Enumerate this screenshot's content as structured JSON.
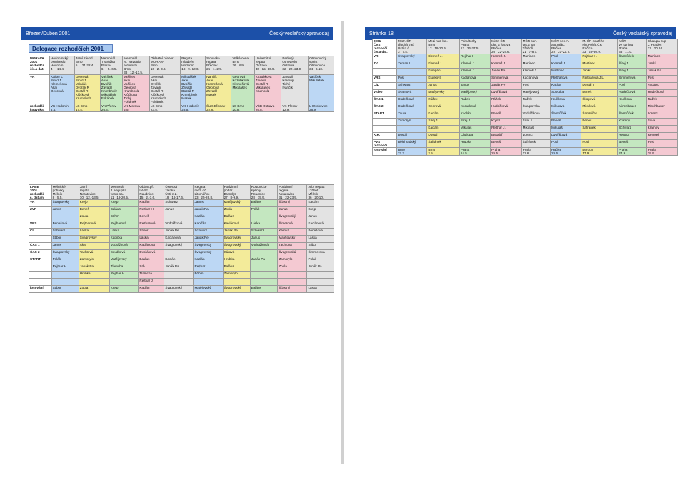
{
  "left_page": {
    "header_left": "Březen/Duben 2001",
    "header_right": "Český veslařský zpravodaj",
    "delegation_title": "Delegace rozhodčích 2001",
    "table1": {
      "rows": [
        {
          "label": "MORAVA\n2001\nrozhodčí\nčís.a dat.",
          "cells": [
            "Hodonínský\nosmiveslu\nHodonín\n4     14.4.",
            "Jarní závod\nBrno\n5     21-22.4.",
            "Memoriál\nTvarůžka\nPřerov\n6     5.-6.5.",
            "Memoriál\nM. Navrátila\na dorostu\nBrno\n38   12.-13.5.",
            "Oblastní přebor\nMORAVA\nBrno\n16   2.-3.6.",
            "Regata\nmládeže\nHodonín\n18   9.-10.6.",
            "Slovácká\nregata\nBřeclav\n25   1.-2.9.",
            "Velká cena\nBrno\n26   8.9.",
            "Univerzitní\nregata\nOstrava\n30   15.-16.9.",
            "Perlový\nosmiveslu\nOstrava\n32   22.-23.9.",
            "Otrokovický\nsprint\nOtrokovice\n34   6.10."
          ]
        },
        {
          "label": "VR",
          "cells": [
            "Kaiser L\nŠmíd J\nKlemešová\nAkai\nGeorová",
            "Georová\nŠmíd J\nMikuláš\nDvořák R\nDostál R\nKlůčková\nKrumbholz",
            "Vašíček\nAkai\nDvořák\nZavadil\nKrumbholz\nMikulášek\nFoltánek",
            "Vašíček\nAkai\nVašíček\nGeorová\nKrumbholz\nKlůčková\nTichý\nFoltánek",
            "Georová\nAkai\nDvořák\nZavadil\nDostál R\nKlůčková\nKrumbholz\nFoltánek",
            "Mikulášek\nAkai\nDvořák\nZavadil\nDostál R\nKrumbholz\nMasek",
            "Ivančík\nAkai\nKlemešová\nGeorová\nZavadil\nMasek",
            "Georová\nKozubková\nKlemešová\nMikulášek",
            "Kozubková\nZavadil\nDostál R\nMikulášek\nKrumholz",
            "Zavadil\nKramný\nTichý\nIvančík",
            "Vašíček\nMikulášek"
          ]
        },
        {
          "label": "rozhodčí\nkouvukat",
          "cells": [
            "VK Hodonín\n4.4.",
            "LS Brno\n17.4.",
            "VK Přerov\n26.4.",
            "VK Morava\n2.5.",
            "LS Brno\n23.5.",
            "VK Hodonín\n28.5.",
            "ŠUK Břeclav\n22.8.",
            "LS Brno\n20.8.",
            "VŠB Ostrava\n29.8.",
            "VK Přerov\n12.9.",
            "L Otrokovice\n26.9."
          ]
        }
      ]
    },
    "table2": {
      "head": {
        "label": "LABE\n2001\nrozhodčí\nč. datum",
        "cells": [
          "Mělnické\npohárky\nMělník\n8   5.5.",
          "Jarní\nregata\nNeratovice\n10   12.-13.5.",
          "Memoriál\nJ. Vejlupka\nveslo s L.\n11   19-20.5.",
          "Oblast.př.\nLABE\nRaudnice\n15   2.-3.6.",
          "Ústecká\nzátoka\nÚstí n.L.\n19   16-17.6.",
          "Regata\nmezi.oč.\nLitoměřice\n23   25-26.8.",
          "Podzimní\npohár\nBrandýs\n27   8-9.9.",
          "Roudnické\nsprinty\nRoudnice\n28   15.9.",
          "Podzimní\nregata\nNeratovice\n31   22-23.9.",
          "Jub. regata\n120 let\nMělník\n36   20.10."
        ]
      },
      "rows": [
        {
          "label": "VR",
          "cells": [
            "Švagrovský",
            "Krejp",
            "Krejp",
            "Kaclán",
            "Schwarz",
            "Janus",
            "Matějovský",
            "Baláus",
            "Šťastný",
            "Kaclán"
          ]
        },
        {
          "label": "ZVR",
          "cells": [
            "Janus",
            "Beneš",
            "Baláus",
            "Rejthar H.",
            "Janus",
            "Janák Pa",
            "Zoula",
            "Polák",
            "Janus",
            "Krejp"
          ]
        },
        {
          "label": "",
          "cells": [
            "",
            "Zoula",
            "Böhm",
            "Beneš",
            "",
            "Kaclán",
            "Baláus",
            "",
            "Švagrovský",
            "Janus"
          ]
        },
        {
          "label": "VRS",
          "cells": [
            "Benešová",
            "Rejtharová",
            "Rejtharová",
            "Rejtharová",
            "Vodrážková",
            "Kapička",
            "Kaclánová",
            "Láska",
            "Šimerová",
            "Kaclánová"
          ]
        },
        {
          "label": "CÍL",
          "cells": [
            "Schwarz",
            "Láska",
            "Láska",
            "Stibor",
            "Janák Pe",
            "Schwarz",
            "Janák Pe",
            "Schwarz",
            "Kárová",
            "Benešová"
          ]
        },
        {
          "label": "",
          "cells": [
            "Stibor",
            "Švagrovský",
            "Kapička",
            "Láska",
            "Kaclánová",
            "Janák Pe",
            "Švagrovský",
            "Janus",
            "Matějovský",
            "Láska"
          ]
        },
        {
          "label": "ČAS 1",
          "cells": [
            "Janus",
            "Akai",
            "Vodrážková",
            "Kaclánová",
            "Švagrovský",
            "Švagrovský",
            "Švagrovský",
            "Vodrážková",
            "Tachtová",
            "Stibor"
          ]
        },
        {
          "label": "ČAS 2",
          "cells": [
            "Švagrovský",
            "Tachtová",
            "Soudková",
            "Dvořáková",
            "",
            "Švagrovský",
            "Kárová",
            "",
            "Švagrovská",
            "Šimmerová"
          ]
        },
        {
          "label": "START",
          "cells": [
            "Polák",
            "Zamorylo",
            "Matějovský",
            "Baláus",
            "Kaclán",
            "Kaclán",
            "Hrubka",
            "Janák Pa",
            "Zamorylo",
            "Polák"
          ]
        },
        {
          "label": "",
          "cells": [
            "Rejthar H",
            "Janák Pa",
            "Tlamcha",
            "Srb",
            "Janák Pa",
            "Rejthar",
            "Baláus",
            "",
            "Zoula",
            "Janák Pa"
          ]
        },
        {
          "label": "",
          "cells": [
            "",
            "Hrubka",
            "Rejthar H.",
            "Tlamcha",
            "",
            "Böhm",
            "Zamorylo",
            "",
            "",
            ""
          ]
        },
        {
          "label": "",
          "cells": [
            "",
            "",
            "",
            "Rejthar J",
            "",
            "",
            "",
            "",
            "",
            ""
          ]
        },
        {
          "label": "losování",
          "cells": [
            "Stibor",
            "Zoula",
            "Krejp",
            "Kaclán",
            "Švagrovský",
            "Matějovský",
            "Švagrovský",
            "Baláus",
            "Šťastný",
            "Láska"
          ]
        }
      ]
    }
  },
  "right_page": {
    "header_left": "Stránka 18",
    "header_right": "Český veslařský zpravodaj",
    "table3": {
      "head": {
        "label": "2001\nČVS\nrozhodčí\nčís.a dat.",
        "cells": [
          "Mistr. ČR\ndlouhá trať\nÚstí n./L.\n3   7.4.",
          "Mezi nat. lun.\nBrno\n12   19-20.5.",
          "Primátorky\nPraha\n13   26-27.5.",
          "Mistr. ČR\ndor. a žactva\nRačice\n20   22-24.6.",
          "MČR sen.\nvet.a jun\nTřeboň\n21   7-8.7.",
          "MČR sen.A\na tr.mlád.\nRačice\n22   21-22.7.",
          "M. ČR soutěže\nFin.Pohár.ČR\nRačice\n33   29-30.9.",
          "MČR\nve sprintu\nPraha\n35   1.10.",
          "Chalupa cup\nJ. Hradec\n37   20.10."
        ]
      },
      "rows": [
        {
          "label": "VR",
          "cells": [
            "Švagrovský",
            "Klemeš J.",
            "Rejthar H",
            "Klemeš J.",
            "Martinec",
            "Posl",
            "Rejthar H.",
            "Šantrůček",
            "Martinec"
          ]
        },
        {
          "label": "ZV",
          "cells": [
            "Zeman L",
            "Klemeš J.",
            "Klemeš J.",
            "Klemeš J.",
            "Martinec",
            "Klemeš J.",
            "Martinec",
            "Šírej J.",
            "Jankú"
          ]
        },
        {
          "label": "",
          "cells": [
            "",
            "Kumpán",
            "Klemeš J.",
            "Janák Pe",
            "Klemeš J.",
            "Martinec",
            "Jankú",
            "Šírej J",
            "Janák Pa"
          ]
        },
        {
          "label": "VRS",
          "cells": [
            "Posl",
            "Klučková",
            "Kaclánová",
            "Šimmerová",
            "Kaclánová",
            "Rejtharová",
            "Rejtharová J.L.",
            "Šimmerová",
            "Posl"
          ]
        },
        {
          "label": "CÍL",
          "cells": [
            "Schwarz",
            "Janus",
            "Janus",
            "Janák Pe",
            "Posl",
            "Kaclán",
            "Dostál I",
            "Posl",
            "Vacátko"
          ]
        },
        {
          "label": "Video",
          "cells": [
            "Švantová",
            "Matějovský",
            "Matějovský",
            "Dvořáková",
            "Matějovský",
            "Sobotka",
            "Beneš",
            "Hudečková",
            "Hudečková"
          ]
        },
        {
          "label": "ČAS 1",
          "cells": [
            "Hudečková",
            "Rážek",
            "Rážek",
            "Rážek",
            "Rážek",
            "Klučková",
            "Škopová",
            "Klučková",
            "Rážek"
          ]
        },
        {
          "label": "ČAS 2",
          "cells": [
            "Hudečková",
            "Georová",
            "Kocurková",
            "Hudečková",
            "Švagrovská",
            "Mikulová",
            "Mikulová",
            "Minchbauer",
            "Minchbauer"
          ]
        },
        {
          "label": "START",
          "cells": [
            "Zoula",
            "Kaclán",
            "Kaclán",
            "Beneš",
            "Vodrážková",
            "Šantrůček",
            "Šantrůček",
            "Šantrůček",
            "Lorenc"
          ]
        },
        {
          "label": "",
          "cells": [
            "Zamorylo",
            "Šírej J.",
            "Šírej J.",
            "Kryml",
            "Šírej J.",
            "Beneš",
            "Beneš",
            "Kramný",
            "Sova"
          ]
        },
        {
          "label": "",
          "cells": [
            "",
            "Kaclán",
            "Mikuláš",
            "Rejthar J.",
            "Mikuláš",
            "Mikuláš",
            "Šafránek",
            "Schwarz",
            "Kramný"
          ]
        },
        {
          "label": "K.K.",
          "cells": [
            "Dostál",
            "Dostál",
            "Chalupa",
            "Bakalář",
            "Lorenc",
            "Dvořáková",
            "",
            "Regata",
            "Remsel"
          ]
        },
        {
          "label": "PVS\nrozhodčí",
          "cells": [
            "Bělehradský",
            "Šafránek",
            "Hrubka",
            "Beneš",
            "Šafránek",
            "Posl",
            "Posl",
            "Beneš",
            "Posl"
          ]
        },
        {
          "label": "losování",
          "cells": [
            "Brno\n27.3.",
            "Brno\n2.5.",
            "Praha\n14.5.",
            "Praha\n25.5.",
            "Praha\n11.6.",
            "Račice\n25.6.",
            "Beroun\n17.9.",
            "Praha\n24.9.",
            "Praha\n29.9."
          ]
        }
      ]
    }
  }
}
